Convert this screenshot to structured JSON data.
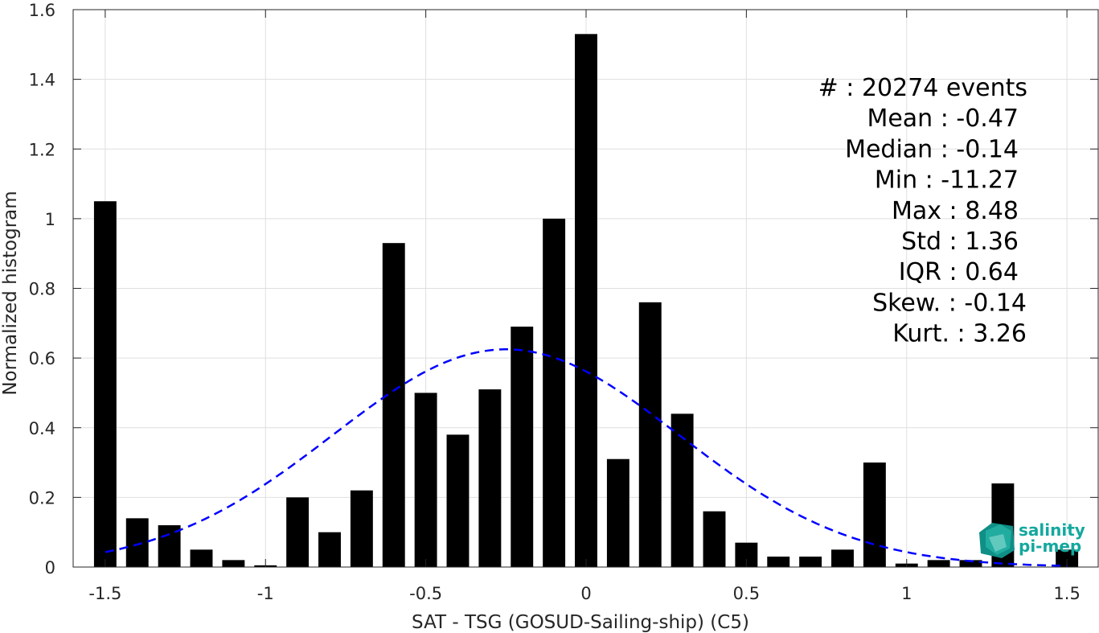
{
  "chart_data": {
    "type": "bar",
    "xlabel": "SAT - TSG (GOSUD-Sailing-ship) (C5)",
    "ylabel": "Normalized histogram",
    "xlim": [
      -1.6,
      1.6
    ],
    "ylim": [
      0,
      1.6
    ],
    "xticks": [
      "-1.5",
      "-1",
      "-0.5",
      "0",
      "0.5",
      "1",
      "1.5"
    ],
    "xtick_values": [
      -1.5,
      -1,
      -0.5,
      0,
      0.5,
      1,
      1.5
    ],
    "yticks": [
      "0",
      "0.2",
      "0.4",
      "0.6",
      "0.8",
      "1",
      "1.2",
      "1.4",
      "1.6"
    ],
    "ytick_values": [
      0,
      0.2,
      0.4,
      0.6,
      0.8,
      1,
      1.2,
      1.4,
      1.6
    ],
    "grid": true,
    "bar_color": "#000000",
    "x": [
      -1.5,
      -1.4,
      -1.3,
      -1.2,
      -1.1,
      -1.0,
      -0.9,
      -0.8,
      -0.7,
      -0.6,
      -0.5,
      -0.4,
      -0.3,
      -0.2,
      -0.1,
      0.0,
      0.1,
      0.2,
      0.3,
      0.4,
      0.5,
      0.6,
      0.7,
      0.8,
      0.9,
      1.0,
      1.1,
      1.2,
      1.3,
      1.4,
      1.5
    ],
    "values": [
      1.05,
      0.14,
      0.12,
      0.05,
      0.02,
      0.005,
      0.2,
      0.1,
      0.22,
      0.93,
      0.5,
      0.38,
      0.51,
      0.69,
      1.0,
      1.53,
      0.31,
      0.76,
      0.44,
      0.16,
      0.07,
      0.03,
      0.03,
      0.05,
      0.3,
      0.01,
      0.02,
      0.02,
      0.24,
      0.0,
      0.05
    ],
    "fit": {
      "type": "gaussian",
      "mean": -0.25,
      "amplitude": 0.625,
      "sigma": 0.54,
      "color": "#0000ff",
      "style": "dashed",
      "x_range": [
        -1.5,
        1.5
      ]
    },
    "stats": [
      "#  : 20274 events",
      "Mean : -0.47",
      "Median : -0.14",
      "Min : -11.27",
      "Max : 8.48",
      "Std : 1.36",
      "IQR : 0.64",
      "Skew. : -0.14",
      "Kurt. : 3.26"
    ]
  },
  "logo": {
    "line1": "salinity",
    "line2": "pi-mep",
    "color": "#13a89e"
  }
}
